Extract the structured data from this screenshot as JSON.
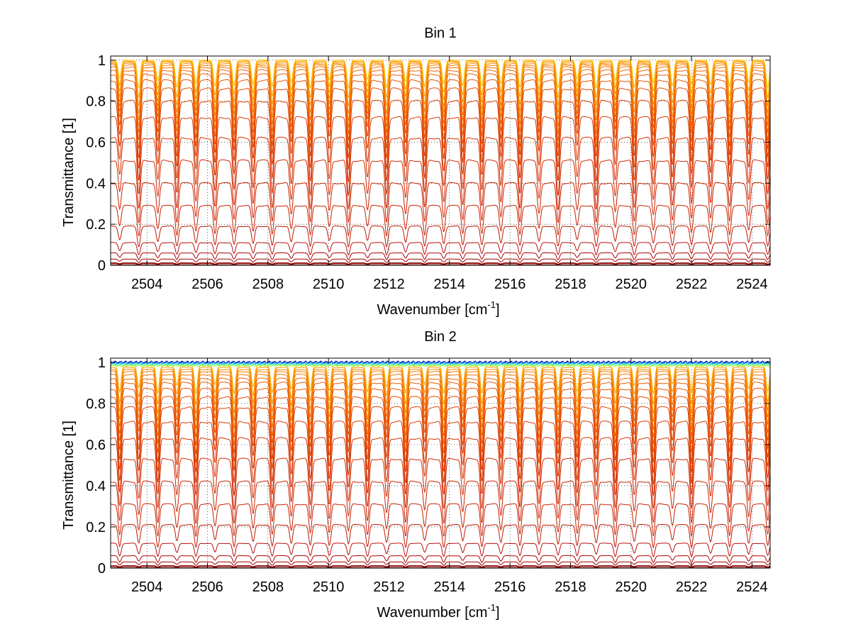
{
  "chart_data": [
    {
      "type": "line",
      "title": "Bin 1",
      "xlabel": "Wavenumber [cm",
      "xlabel_sup": "-1",
      "xlabel_tail": "]",
      "ylabel": "Transmittance [1]",
      "xlim": [
        2502.8,
        2524.6
      ],
      "ylim": [
        0,
        1.02
      ],
      "xticks": [
        2504,
        2506,
        2508,
        2510,
        2512,
        2514,
        2516,
        2518,
        2520,
        2522,
        2524
      ],
      "yticks": [
        0,
        0.2,
        0.4,
        0.6,
        0.8,
        1
      ],
      "ytick_labels": [
        "0",
        "0.2",
        "0.4",
        "0.6",
        "0.8",
        "1"
      ],
      "grid": true,
      "legend": "none",
      "line_spacing": 0.63,
      "line_center": 2503.1,
      "line_width": 0.07,
      "baselines": [
        0.0,
        0.01,
        0.03,
        0.06,
        0.11,
        0.19,
        0.29,
        0.4,
        0.51,
        0.62,
        0.72,
        0.8,
        0.86,
        0.9,
        0.93,
        0.95,
        0.965,
        0.975,
        0.983,
        0.99,
        0.995,
        1.0
      ],
      "colors": [
        "#8b0000",
        "#8b0000",
        "#a00000",
        "#b00000",
        "#bb1010",
        "#c01800",
        "#c82000",
        "#cc2200",
        "#d02800",
        "#d53000",
        "#da3800",
        "#de4000",
        "#e34800",
        "#e85200",
        "#ec5c00",
        "#f06600",
        "#f47200",
        "#f67e00",
        "#f88a00",
        "#fa9800",
        "#fba800",
        "#fcc000"
      ],
      "noise_colors": []
    },
    {
      "type": "line",
      "title": "Bin 2",
      "xlabel": "Wavenumber [cm",
      "xlabel_sup": "-1",
      "xlabel_tail": "]",
      "ylabel": "Transmittance [1]",
      "xlim": [
        2502.8,
        2524.6
      ],
      "ylim": [
        0,
        1.02
      ],
      "xticks": [
        2504,
        2506,
        2508,
        2510,
        2512,
        2514,
        2516,
        2518,
        2520,
        2522,
        2524
      ],
      "yticks": [
        0,
        0.2,
        0.4,
        0.6,
        0.8,
        1
      ],
      "ytick_labels": [
        "0",
        "0.2",
        "0.4",
        "0.6",
        "0.8",
        "1"
      ],
      "grid": true,
      "legend": "none",
      "line_spacing": 0.63,
      "line_center": 2503.1,
      "line_width": 0.07,
      "baselines": [
        0.0,
        0.01,
        0.03,
        0.06,
        0.12,
        0.21,
        0.31,
        0.42,
        0.53,
        0.63,
        0.71,
        0.78,
        0.83,
        0.87,
        0.9,
        0.92,
        0.94,
        0.955,
        0.965,
        0.975,
        0.985
      ],
      "colors": [
        "#8b0000",
        "#8b0000",
        "#a00000",
        "#b00000",
        "#bb1010",
        "#c01800",
        "#c82000",
        "#cc2200",
        "#d02800",
        "#d53000",
        "#da3800",
        "#de4000",
        "#e34800",
        "#e85200",
        "#ec5c00",
        "#f06600",
        "#f47200",
        "#f67e00",
        "#f88a00",
        "#fa9800",
        "#fba800"
      ],
      "noise_colors": [
        "#00008f",
        "#0050ff",
        "#00c0ff",
        "#40ffbf",
        "#c0ff40"
      ]
    }
  ]
}
